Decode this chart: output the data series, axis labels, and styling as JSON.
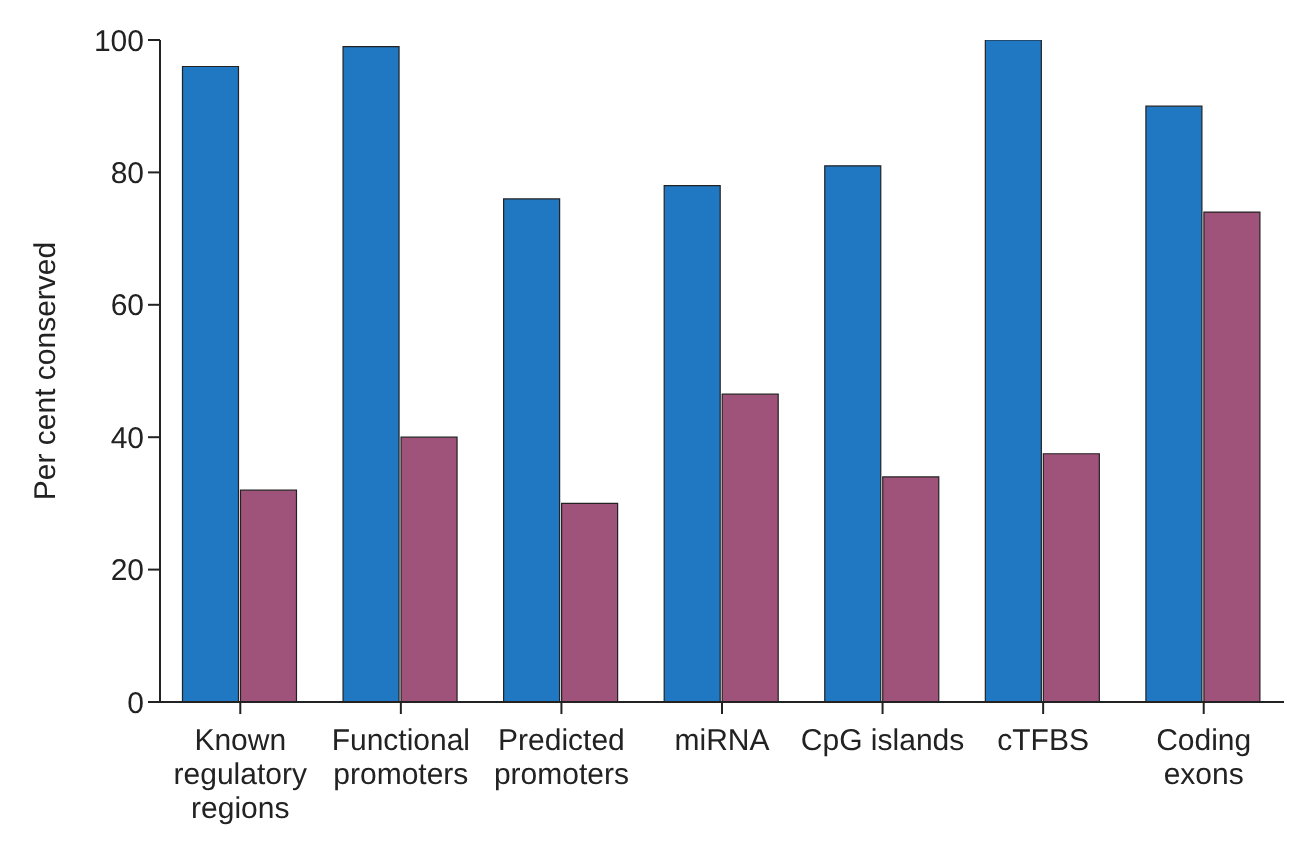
{
  "chart_data": {
    "type": "bar",
    "ylabel": "Per cent conserved",
    "categories": [
      "Known regulatory regions",
      "Functional promoters",
      "Predicted promoters",
      "miRNA",
      "CpG islands",
      "cTFBS",
      "Coding exons"
    ],
    "series": [
      {
        "color": "#1f78c1",
        "values": [
          96,
          99,
          76,
          78,
          81,
          100,
          90
        ]
      },
      {
        "color": "#a0537a",
        "values": [
          32,
          40,
          30,
          46.5,
          34,
          37.5,
          74
        ]
      }
    ],
    "ylim": [
      0,
      100
    ],
    "yticks": [
      0,
      20,
      40,
      60,
      80,
      100
    ],
    "grid": false,
    "legend": false
  }
}
